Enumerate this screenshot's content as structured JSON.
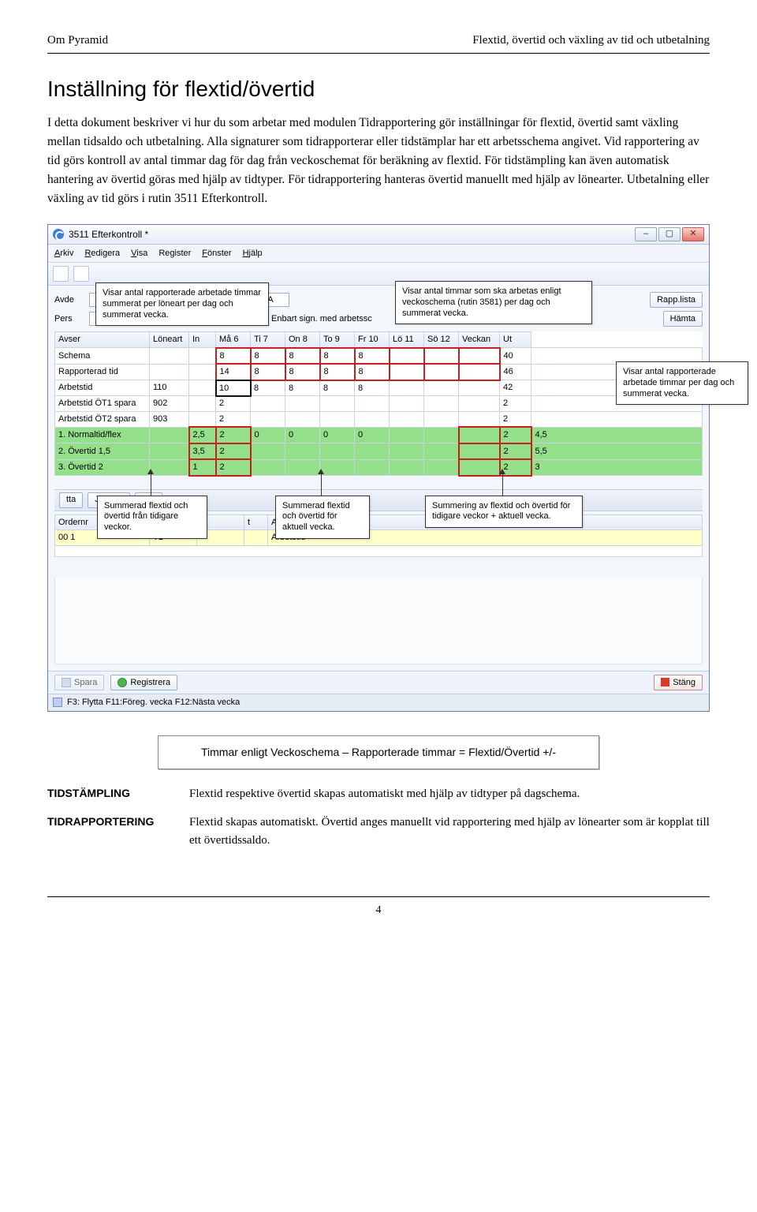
{
  "header": {
    "left": "Om Pyramid",
    "right": "Flextid, övertid och växling av tid och utbetalning"
  },
  "title": "Inställning för flextid/övertid",
  "intro": "I detta dokument beskriver vi hur du som arbetar med modulen Tidrapportering gör inställningar för flextid, övertid samt växling mellan tidsaldo och utbetalning. Alla signaturer som tidrapporterar eller tidstämplar har ett arbetsschema angivet. Vid rapportering av tid görs kontroll av antal timmar dag för dag från veckoschemat för beräkning av flextid. För tidstämpling kan även automatisk hantering av övertid göras med hjälp av tidtyper. För tidrapportering hanteras övertid manuellt med hjälp av lönearter. Utbetalning eller växling av tid görs i rutin 3511 Efterkontroll.",
  "win": {
    "title": "3511 Efterkontroll *",
    "menu": [
      "Arkiv",
      "Redigera",
      "Visa",
      "Register",
      "Fönster",
      "Hjälp"
    ],
    "fields": {
      "avd_label": "Avde",
      "pers_label": "Pers",
      "sa": "SA",
      "checkbox": "Enbart sign. med arbetssc"
    },
    "buttons": {
      "rapp": "Rapp.lista",
      "hamta": "Hämta",
      "reg": "Registrera",
      "stang": "Stäng",
      "spara": "Spara"
    },
    "cols": [
      "Avser",
      "Löneart",
      "In",
      "Må 6",
      "Ti 7",
      "On 8",
      "To 9",
      "Fr 10",
      "Lö 11",
      "Sö 12",
      "Veckan",
      "Ut"
    ],
    "rows": [
      {
        "label": "Schema",
        "lon": "",
        "in": "",
        "d": [
          "8",
          "8",
          "8",
          "8",
          "8",
          "",
          "",
          ""
        ],
        "v": "40",
        "ut": "",
        "hl": "red"
      },
      {
        "label": "Rapporterad tid",
        "lon": "",
        "in": "",
        "d": [
          "14",
          "8",
          "8",
          "8",
          "8",
          "",
          "",
          ""
        ],
        "v": "46",
        "ut": "",
        "hl": "red"
      },
      {
        "label": "Arbetstid",
        "lon": "110",
        "in": "",
        "d": [
          "10",
          "8",
          "8",
          "8",
          "8",
          "",
          "",
          ""
        ],
        "v": "42",
        "ut": "",
        "hl": "dark"
      },
      {
        "label": "Arbetstid ÖT1 spara",
        "lon": "902",
        "in": "",
        "d": [
          "2",
          "",
          "",
          "",
          "",
          "",
          "",
          ""
        ],
        "v": "2",
        "ut": ""
      },
      {
        "label": "Arbetstid ÖT2 spara",
        "lon": "903",
        "in": "",
        "d": [
          "2",
          "",
          "",
          "",
          "",
          "",
          "",
          ""
        ],
        "v": "2",
        "ut": ""
      },
      {
        "label": "1. Normaltid/flex",
        "lon": "",
        "in": "2,5",
        "d": [
          "2",
          "0",
          "0",
          "0",
          "0",
          "",
          "",
          ""
        ],
        "v": "2",
        "ut": "4,5",
        "green": true
      },
      {
        "label": "2. Övertid 1,5",
        "lon": "",
        "in": "3,5",
        "d": [
          "2",
          "",
          "",
          "",
          "",
          "",
          "",
          ""
        ],
        "v": "2",
        "ut": "5,5",
        "green": true
      },
      {
        "label": "3. Övertid 2",
        "lon": "",
        "in": "1",
        "d": [
          "2",
          "",
          "",
          "",
          "",
          "",
          "",
          ""
        ],
        "v": "2",
        "ut": "3",
        "green": true
      }
    ],
    "mid_buttons": [
      "tta",
      "Justera",
      "Del"
    ],
    "mid_cols": [
      "Ordernr",
      "Tid",
      "",
      "t",
      "Anmärkning"
    ],
    "mid_row": [
      "00 1",
      "T1",
      "",
      "",
      "Arbetstid"
    ],
    "status": "F3: Flytta  F11:Föreg. vecka  F12:Nästa vecka"
  },
  "callouts": {
    "c1": "Visar antal rapporterade arbetade timmar summerat per löneart per dag och summerat vecka.",
    "c2": "Visar antal timmar som ska arbetas enligt veckoschema (rutin 3581) per dag och summerat vecka.",
    "c3": "Visar antal rapporterade arbetade timmar per dag och summerat vecka.",
    "c4": "Summerad flextid och övertid från tidigare veckor.",
    "c5": "Summerad flextid och övertid för aktuell vecka.",
    "c6": "Summering av flextid och övertid för tidigare veckor + aktuell vecka."
  },
  "formula": "Timmar enligt Veckoschema – Rapporterade timmar = Flextid/Övertid +/-",
  "defs": [
    {
      "term": "TIDSTÄMPLING",
      "val": "Flextid respektive övertid skapas automatiskt med hjälp av tidtyper på dagschema."
    },
    {
      "term": "TIDRAPPORTERING",
      "val": "Flextid skapas automatiskt. Övertid anges manuellt vid rapportering med hjälp av lönearter som är kopplat till ett övertidssaldo."
    }
  ],
  "pagenum": "4",
  "colors": {
    "red": "#c62020",
    "green_row": "#94e08a"
  }
}
